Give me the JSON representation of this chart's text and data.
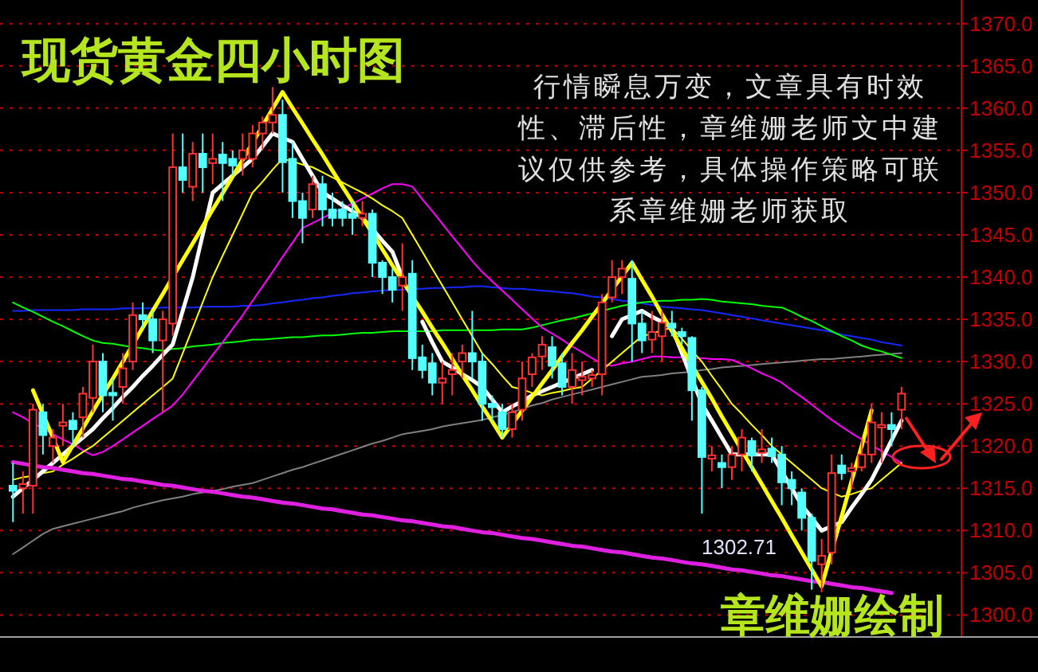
{
  "chart_data": {
    "type": "candlestick",
    "title": "现货黄金四小时图",
    "annotations": [
      "行情瞬息万变，文章具有时效性、滞后性，章维姗老师文中建议仅供参考，具体操作策略可联系章维姗老师获取",
      "1302.71",
      "章维姗绘制"
    ],
    "categories": [
      null,
      null,
      null,
      null,
      null,
      null,
      null,
      null,
      null,
      null,
      null,
      null,
      null,
      null,
      null,
      null,
      null,
      null,
      null,
      null,
      null,
      null,
      null,
      null,
      null,
      null,
      null,
      null,
      null,
      null,
      null,
      null,
      null,
      null,
      null,
      null,
      null,
      null,
      null,
      null,
      null,
      null,
      null,
      null,
      null,
      null,
      null,
      null,
      null,
      null,
      null,
      null,
      null,
      null,
      null,
      null,
      null,
      null,
      null,
      null,
      null,
      null,
      null,
      null,
      null,
      null,
      null,
      null,
      null,
      null,
      null,
      null,
      null,
      null,
      null,
      null,
      null,
      null,
      null,
      null,
      null,
      null,
      null,
      null,
      null,
      null,
      null,
      null,
      null,
      null
    ],
    "ohlc": [
      [
        1315.3,
        1318,
        1311,
        1314.7
      ],
      [
        1315,
        1317,
        1312,
        1315.5
      ],
      [
        1315.3,
        1325,
        1312,
        1324.3
      ],
      [
        1324,
        1325,
        1319,
        1321.3
      ],
      [
        1320,
        1322,
        1318,
        1321
      ],
      [
        1322.4,
        1325,
        1320,
        1322.8
      ],
      [
        1323,
        1324,
        1320,
        1322
      ],
      [
        1323.4,
        1327,
        1321,
        1326.2
      ],
      [
        1325.7,
        1332,
        1324,
        1330
      ],
      [
        1330,
        1331,
        1324,
        1326
      ],
      [
        1326.3,
        1328,
        1323,
        1326
      ],
      [
        1327,
        1331,
        1325,
        1329.2
      ],
      [
        1330,
        1337,
        1329,
        1335.5
      ],
      [
        1335.5,
        1337,
        1334,
        1335
      ],
      [
        1335,
        1336,
        1331,
        1332.5
      ],
      [
        1332.5,
        1336,
        1324,
        1335
      ],
      [
        1334.5,
        1357,
        1333,
        1353
      ],
      [
        1353,
        1357,
        1350,
        1351.5
      ],
      [
        1350.7,
        1356,
        1349,
        1354.6
      ],
      [
        1354.6,
        1357,
        1350,
        1353
      ],
      [
        1353.5,
        1357,
        1351,
        1354
      ],
      [
        1354.5,
        1356,
        1349,
        1353.5
      ],
      [
        1354,
        1355,
        1352,
        1353.2
      ],
      [
        1354,
        1357,
        1352,
        1355
      ],
      [
        1354,
        1358,
        1353,
        1357
      ],
      [
        1357,
        1359,
        1355,
        1358.3
      ],
      [
        1358.3,
        1362.5,
        1357,
        1359.2
      ],
      [
        1359.2,
        1361,
        1350,
        1353.6
      ],
      [
        1354,
        1356,
        1347,
        1349
      ],
      [
        1349,
        1350,
        1344,
        1347
      ],
      [
        1348,
        1352,
        1347,
        1351
      ],
      [
        1351,
        1352,
        1346,
        1348
      ],
      [
        1348,
        1350,
        1346,
        1347
      ],
      [
        1348,
        1349,
        1346,
        1347
      ],
      [
        1347.5,
        1349,
        1345,
        1347
      ],
      [
        1347,
        1349,
        1346,
        1347.5
      ],
      [
        1347.5,
        1348,
        1340,
        1341.7
      ],
      [
        1341.7,
        1342,
        1338,
        1340
      ],
      [
        1340,
        1341,
        1337,
        1338.5
      ],
      [
        1339,
        1344,
        1336,
        1340
      ],
      [
        1340.4,
        1342,
        1329,
        1330.4
      ],
      [
        1330.5,
        1332,
        1328,
        1329
      ],
      [
        1329.8,
        1331,
        1326,
        1327.5
      ],
      [
        1327.5,
        1330,
        1325,
        1328
      ],
      [
        1328.5,
        1331,
        1326,
        1329
      ],
      [
        1330,
        1332,
        1328,
        1331
      ],
      [
        1331,
        1336,
        1328,
        1330
      ],
      [
        1330,
        1331,
        1323,
        1325
      ],
      [
        1325,
        1326,
        1323,
        1324.6
      ],
      [
        1324,
        1325,
        1321,
        1322
      ],
      [
        1322,
        1325,
        1321,
        1324
      ],
      [
        1324.3,
        1330,
        1323,
        1328
      ],
      [
        1328.5,
        1331,
        1327,
        1330.5
      ],
      [
        1330.6,
        1333,
        1329,
        1332
      ],
      [
        1331.7,
        1333,
        1328,
        1329.5
      ],
      [
        1329.8,
        1331,
        1326,
        1327
      ],
      [
        1327,
        1331,
        1325,
        1329
      ],
      [
        1327.8,
        1330,
        1326,
        1328.2
      ],
      [
        1328,
        1329,
        1327,
        1328.4
      ],
      [
        1328.5,
        1338,
        1326,
        1337
      ],
      [
        1337.6,
        1342,
        1337,
        1340
      ],
      [
        1340,
        1342,
        1338,
        1341
      ],
      [
        1339.8,
        1342,
        1330,
        1334.5
      ],
      [
        1334.5,
        1336,
        1331,
        1332.5
      ],
      [
        1332.6,
        1336,
        1331,
        1333.5
      ],
      [
        1333,
        1336,
        1330,
        1334.6
      ],
      [
        1334.5,
        1336,
        1333,
        1334
      ],
      [
        1333.5,
        1334,
        1332,
        1333
      ],
      [
        1332.8,
        1333,
        1323,
        1326.6
      ],
      [
        1326.6,
        1327,
        1312,
        1318.7
      ],
      [
        1318.5,
        1320,
        1317,
        1318.9
      ],
      [
        1318,
        1319,
        1315,
        1317.5
      ],
      [
        1317.5,
        1320,
        1316,
        1319
      ],
      [
        1319,
        1322,
        1317,
        1321
      ],
      [
        1320.6,
        1321,
        1317,
        1318.9
      ],
      [
        1319.2,
        1322,
        1318,
        1319.6
      ],
      [
        1319.7,
        1321,
        1318,
        1318.8
      ],
      [
        1319,
        1320,
        1313,
        1315.7
      ],
      [
        1316,
        1317,
        1313,
        1315
      ],
      [
        1314.5,
        1315,
        1310,
        1311.5
      ],
      [
        1311.5,
        1312,
        1303,
        1306.4
      ],
      [
        1306,
        1309,
        1302.71,
        1307
      ],
      [
        1307.4,
        1319,
        1306,
        1316.8
      ],
      [
        1317.7,
        1319,
        1316,
        1316.8
      ],
      [
        1317,
        1318,
        1315,
        1317.4
      ],
      [
        1317.5,
        1321,
        1317,
        1319
      ],
      [
        1319,
        1325,
        1318,
        1322.8
      ],
      [
        1322.2,
        1324,
        1318,
        1322.5
      ],
      [
        1322.5,
        1324,
        1320,
        1322
      ],
      [
        1324.3,
        1327,
        1322,
        1326.2
      ]
    ],
    "series": [
      {
        "type": "line",
        "color": "#808080",
        "values": [
          1307.2,
          1308,
          1308.8,
          1309.6,
          1310.2,
          1310.5,
          1310.8,
          1311.1,
          1311.4,
          1311.7,
          1312,
          1312.3,
          1312.7,
          1313,
          1313.3,
          1313.6,
          1313.8,
          1314,
          1314.3,
          1314.5,
          1314.7,
          1314.9,
          1315.2,
          1315.4,
          1315.6,
          1316,
          1316.4,
          1316.8,
          1317.2,
          1317.5,
          1317.9,
          1318.3,
          1318.7,
          1319.1,
          1319.5,
          1319.9,
          1320.3,
          1320.6,
          1321,
          1321.4,
          1321.6,
          1321.8,
          1322,
          1322.3,
          1322.5,
          1322.7,
          1322.9,
          1323.1,
          1323.4,
          1323.7,
          1324,
          1324.4,
          1324.8,
          1325.1,
          1325.5,
          1325.8,
          1326.1,
          1326.4,
          1326.7,
          1327,
          1327.3,
          1327.6,
          1327.9,
          1328.2,
          1328.3,
          1328.4,
          1328.6,
          1328.7,
          1328.8,
          1329,
          1329.1,
          1329.3,
          1329.4,
          1329.5,
          1329.6,
          1329.7,
          1329.8,
          1329.9,
          1330,
          1330.1,
          1330.2,
          1330.3,
          1330.3,
          1330.4,
          1330.5,
          1330.6,
          1330.7,
          1330.8,
          1330.9,
          1331
        ]
      },
      {
        "type": "line",
        "color": "#1428ff",
        "values": [
          1336,
          1336,
          1336.1,
          1336.1,
          1336.1,
          1336.1,
          1336.1,
          1336.2,
          1336.2,
          1336.2,
          1336.2,
          1336.3,
          1336.3,
          1336.3,
          1336.3,
          1336.4,
          1336.4,
          1336.4,
          1336.4,
          1336.5,
          1336.5,
          1336.5,
          1336.5,
          1336.6,
          1336.6,
          1336.7,
          1336.9,
          1337,
          1337.2,
          1337.3,
          1337.5,
          1337.6,
          1337.8,
          1337.9,
          1338.1,
          1338.2,
          1338.3,
          1338.4,
          1338.5,
          1338.5,
          1338.6,
          1338.6,
          1338.7,
          1338.7,
          1338.8,
          1338.8,
          1338.9,
          1338.9,
          1338.8,
          1338.7,
          1338.6,
          1338.6,
          1338.5,
          1338.4,
          1338.3,
          1338.2,
          1338.1,
          1337.9,
          1337.7,
          1337.6,
          1337.4,
          1337.2,
          1337.1,
          1336.9,
          1336.7,
          1336.5,
          1336.4,
          1336.3,
          1336.2,
          1336.1,
          1335.9,
          1335.7,
          1335.5,
          1335.3,
          1335.1,
          1334.9,
          1334.7,
          1334.5,
          1334.3,
          1334.1,
          1333.9,
          1333.7,
          1333.5,
          1333.2,
          1333,
          1332.8,
          1332.6,
          1332.3,
          1332.1,
          1331.9
        ]
      },
      {
        "type": "line",
        "color": "#00ff00",
        "values": [
          1337,
          1336.4,
          1335.9,
          1335.3,
          1334.7,
          1334.2,
          1333.6,
          1333,
          1332.5,
          1332.2,
          1332.1,
          1331.9,
          1331.7,
          1331.6,
          1331.4,
          1331.3,
          1331.5,
          1331.6,
          1331.8,
          1331.9,
          1332,
          1332.2,
          1332.3,
          1332.4,
          1332.6,
          1332.6,
          1332.7,
          1332.8,
          1332.9,
          1332.9,
          1333,
          1333.1,
          1333.1,
          1333.2,
          1333.3,
          1333.4,
          1333.4,
          1333.5,
          1333.6,
          1333.6,
          1333.6,
          1333.6,
          1333.6,
          1333.7,
          1333.7,
          1333.7,
          1333.7,
          1333.7,
          1333.7,
          1333.8,
          1333.8,
          1333.8,
          1334,
          1334.3,
          1334.6,
          1334.9,
          1335.1,
          1335.4,
          1335.7,
          1336,
          1336.3,
          1336.6,
          1336.8,
          1337,
          1337.1,
          1337.2,
          1337.2,
          1337.3,
          1337.3,
          1337.4,
          1337.3,
          1337.1,
          1337,
          1336.9,
          1336.8,
          1336.6,
          1336.5,
          1336.4,
          1335.9,
          1335.3,
          1334.8,
          1334.2,
          1333.6,
          1333,
          1332.5,
          1331.9,
          1331.5,
          1331.2,
          1330.8,
          1330.4
        ]
      },
      {
        "type": "line",
        "color": "#ff00ff",
        "values": [
          1324,
          1323.4,
          1322.7,
          1322.1,
          1321.4,
          1320.8,
          1320.2,
          1319.5,
          1318.9,
          1319.3,
          1320,
          1320.8,
          1321.6,
          1322.4,
          1323.2,
          1324,
          1324.8,
          1326.1,
          1327.7,
          1329.2,
          1330.8,
          1332.3,
          1333.9,
          1335.5,
          1337.2,
          1338.9,
          1340.6,
          1342.4,
          1344.1,
          1345.8,
          1346.4,
          1347,
          1347.6,
          1348.1,
          1348.7,
          1349.3,
          1349.9,
          1350.5,
          1351,
          1351,
          1350.7,
          1349.2,
          1347.8,
          1346.3,
          1344.8,
          1343.4,
          1341.9,
          1340.6,
          1339.5,
          1338.4,
          1337.3,
          1336.2,
          1335.1,
          1334,
          1333.3,
          1332.6,
          1331.8,
          1331.1,
          1330.4,
          1329.7,
          1329.5,
          1329.8,
          1330,
          1330.3,
          1330.6,
          1330.6,
          1330.5,
          1330.5,
          1330.4,
          1330.4,
          1330.3,
          1330.3,
          1330.2,
          1329.7,
          1329.2,
          1328.6,
          1328.1,
          1327.5,
          1326.6,
          1325.8,
          1324.9,
          1324,
          1323.1,
          1322.3,
          1321.5,
          1320.8,
          1320.1,
          1319.4,
          1318.7,
          1318
        ]
      },
      {
        "type": "line",
        "color": "#ffff00",
        "values": [
          1316,
          1316.3,
          1316.5,
          1316.8,
          1317,
          1317.8,
          1318.5,
          1319.3,
          1320,
          1321,
          1322,
          1323,
          1324,
          1325,
          1326,
          1327,
          1328,
          1331,
          1334,
          1337,
          1340,
          1342.5,
          1345,
          1347.5,
          1350,
          1351.3,
          1352.7,
          1354,
          1353.7,
          1353.3,
          1353,
          1352.4,
          1351.8,
          1351.2,
          1350.6,
          1350,
          1349.3,
          1348.5,
          1347.8,
          1347,
          1345,
          1343,
          1341,
          1339,
          1337,
          1335,
          1333,
          1331,
          1329.7,
          1328.3,
          1327,
          1326.7,
          1326.3,
          1326,
          1326.3,
          1326.5,
          1326.8,
          1327,
          1328,
          1329,
          1330,
          1331,
          1332,
          1333,
          1333.3,
          1333.7,
          1334,
          1332.7,
          1331.3,
          1330,
          1328.3,
          1326.7,
          1325,
          1323.8,
          1322.5,
          1321.3,
          1320,
          1319,
          1318,
          1317,
          1316,
          1315,
          1314.5,
          1314,
          1314.3,
          1314.7,
          1315,
          1316,
          1317,
          1318
        ]
      },
      {
        "type": "line",
        "color": "#ffffff",
        "values": [
          1314,
          1315,
          1316,
          1317,
          1318,
          1319,
          1320,
          1321,
          1322,
          1323.3,
          1324.5,
          1325.8,
          1327,
          1328.3,
          1329.5,
          1330.8,
          1332,
          1336,
          1340,
          1345,
          1350,
          1351,
          1352,
          1353,
          1354,
          1355.5,
          1357,
          1356.5,
          1356,
          1354,
          1352,
          1350,
          1349.3,
          1348.5,
          1347.8,
          1347,
          1345.7,
          1344.3,
          1343,
          1340,
          null,
          1334.7,
          1332.3,
          1330,
          1329.3,
          1328.5,
          1327.8,
          1327,
          1325.5,
          1324,
          1324.7,
          1325.3,
          1326,
          1326.5,
          1327,
          1327.5,
          1328,
          1328.5,
          1329,
          null,
          1333,
          1335,
          1335.5,
          1336,
          1335.3,
          1334.7,
          1334,
          1331,
          1328,
          1325,
          1323,
          1321,
          1319,
          1319,
          1319,
          1319,
          1319,
          1317,
          1315,
          1313,
          1311.5,
          1310,
          1310.5,
          1311,
          1312.7,
          1314.3,
          1316,
          1318.3,
          1320.7,
          1323
        ]
      },
      {
        "type": "line",
        "color": "#e020e0",
        "values": [
          1318.1,
          1317.9,
          1317.7,
          1317.5,
          1317.4,
          1317.2,
          1317,
          1316.8,
          1316.7,
          1316.5,
          1316.3,
          1316.1,
          1316,
          1315.8,
          1315.6,
          1315.4,
          1315.3,
          1315.1,
          1314.9,
          1314.7,
          1314.6,
          1314.4,
          1314.2,
          1314,
          1313.9,
          1313.7,
          1313.5,
          1313.3,
          1313.2,
          1313,
          1312.8,
          1312.6,
          1312.5,
          1312.3,
          1312.1,
          1311.9,
          1311.8,
          1311.6,
          1311.4,
          1311.2,
          1311.1,
          1310.9,
          1310.7,
          1310.5,
          1310.4,
          1310.2,
          1310,
          1309.8,
          1309.7,
          1309.5,
          1309.3,
          1309.1,
          1309,
          1308.8,
          1308.6,
          1308.4,
          1308.2,
          1308.1,
          1307.9,
          1307.7,
          1307.5,
          1307.4,
          1307.2,
          1307,
          1306.8,
          1306.7,
          1306.5,
          1306.3,
          1306.1,
          1306,
          1305.8,
          1305.6,
          1305.4,
          1305.3,
          1305.1,
          1304.9,
          1304.7,
          1304.6,
          1304.4,
          1304.2,
          1304,
          1303.9,
          1303.7,
          1303.5,
          1303.3,
          1303.2,
          1303,
          1302.8,
          1302.6,
          null
        ]
      },
      {
        "type": "line",
        "color": "#ffff00",
        "values": [
          null,
          null,
          1326.6,
          1323.8,
          1321,
          1318.1,
          1320.1,
          1322.1,
          1324.1,
          1326.1,
          1328,
          1330,
          1332,
          1334,
          1336,
          1338,
          1340,
          1342,
          1344,
          1346,
          1348,
          1349.9,
          1351.9,
          1353.9,
          1355.9,
          1357.9,
          1359.9,
          1361.9,
          1360,
          1358.2,
          1356.3,
          1354.5,
          1352.6,
          1350.7,
          1348.9,
          1347,
          1345.2,
          1343.3,
          1341.4,
          1339.6,
          1337.7,
          1335.9,
          1334,
          1332.2,
          1330.3,
          1328.4,
          1326.6,
          1324.7,
          1322.9,
          1321,
          1322.6,
          1324.2,
          1325.8,
          1327.4,
          1329,
          1330.6,
          1332.2,
          1333.7,
          1335.3,
          1336.9,
          1338.5,
          1340.1,
          1341.7,
          1339.7,
          1337.7,
          1335.6,
          1333.6,
          1331.6,
          1329.6,
          1327.6,
          1325.6,
          1323.5,
          1321.5,
          1319.5,
          1317.5,
          1315.5,
          1313.5,
          1311.5,
          1309.4,
          1307.4,
          1305.4,
          1303.4,
          1307.6,
          1311.7,
          1315.9,
          1320,
          1324.2,
          null,
          null,
          null
        ]
      }
    ],
    "ylim": [
      1297.4,
      1372.8
    ],
    "yticks": [
      {
        "value": 1300,
        "label": "1300.0"
      },
      {
        "value": 1305,
        "label": "1305.0"
      },
      {
        "value": 1310,
        "label": "1310.0"
      },
      {
        "value": 1315,
        "label": "1315.0"
      },
      {
        "value": 1320,
        "label": "1320.0"
      },
      {
        "value": 1325,
        "label": "1325.0"
      },
      {
        "value": 1330,
        "label": "1330.0"
      },
      {
        "value": 1335,
        "label": "1335.0"
      },
      {
        "value": 1340,
        "label": "1340.0"
      },
      {
        "value": 1345,
        "label": "1345.0"
      },
      {
        "value": 1350,
        "label": "1350.0"
      },
      {
        "value": 1355,
        "label": "1355.0"
      },
      {
        "value": 1360,
        "label": "1360.0"
      },
      {
        "value": 1365,
        "label": "1365.0"
      },
      {
        "value": 1370,
        "label": "1370.0"
      }
    ],
    "grid": "y",
    "tick_labels": "y"
  }
}
